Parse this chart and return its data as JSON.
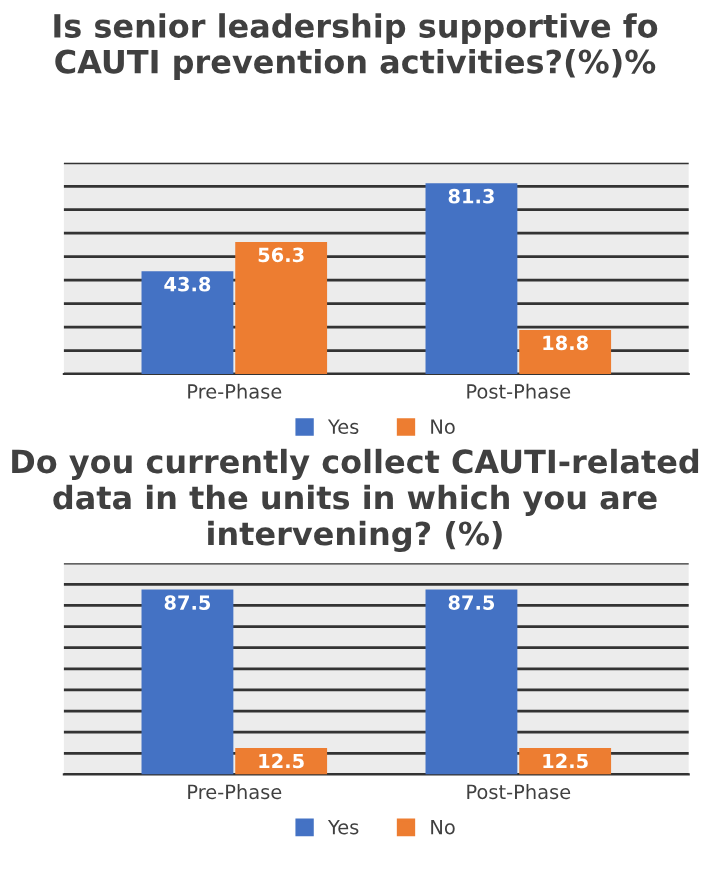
{
  "chart_data": [
    {
      "type": "bar",
      "title": "Is senior leadership supportive fo CAUTI prevention activities?(%)%",
      "categories": [
        "Pre-Phase",
        "Post-Phase"
      ],
      "series": [
        {
          "name": "Yes",
          "color": "#4472c4",
          "values": [
            43.8,
            81.3
          ]
        },
        {
          "name": "No",
          "color": "#ed7d31",
          "values": [
            56.3,
            18.8
          ]
        }
      ],
      "ylim": [
        0,
        90
      ],
      "yticks": [
        {
          "value": 0,
          "label": null
        },
        {
          "value": 10,
          "label": null
        },
        {
          "value": 20,
          "label": null
        },
        {
          "value": 30,
          "label": null
        },
        {
          "value": 40,
          "label": null
        },
        {
          "value": 50,
          "label": null
        },
        {
          "value": 60,
          "label": null
        },
        {
          "value": 70,
          "label": null
        },
        {
          "value": 80,
          "label": null
        },
        {
          "value": 90,
          "label": null
        }
      ],
      "tick_labels": "x",
      "grid": "y",
      "legend": "bottom",
      "data_labels": true
    },
    {
      "type": "bar",
      "title": "Do you currently collect CAUTI-related data in the units in which you are intervening? (%)",
      "categories": [
        "Pre-Phase",
        "Post-Phase"
      ],
      "series": [
        {
          "name": "Yes",
          "color": "#4472c4",
          "values": [
            87.5,
            87.5
          ]
        },
        {
          "name": "No",
          "color": "#ed7d31",
          "values": [
            12.5,
            12.5
          ]
        }
      ],
      "ylim": [
        0,
        100
      ],
      "yticks": [
        {
          "value": 0,
          "label": null
        },
        {
          "value": 10,
          "label": null
        },
        {
          "value": 20,
          "label": null
        },
        {
          "value": 30,
          "label": null
        },
        {
          "value": 40,
          "label": null
        },
        {
          "value": 50,
          "label": null
        },
        {
          "value": 60,
          "label": null
        },
        {
          "value": 70,
          "label": null
        },
        {
          "value": 80,
          "label": null
        },
        {
          "value": 90,
          "label": null
        },
        {
          "value": 100,
          "label": null
        }
      ],
      "tick_labels": "x",
      "grid": "y",
      "legend": "bottom",
      "data_labels": true
    }
  ]
}
